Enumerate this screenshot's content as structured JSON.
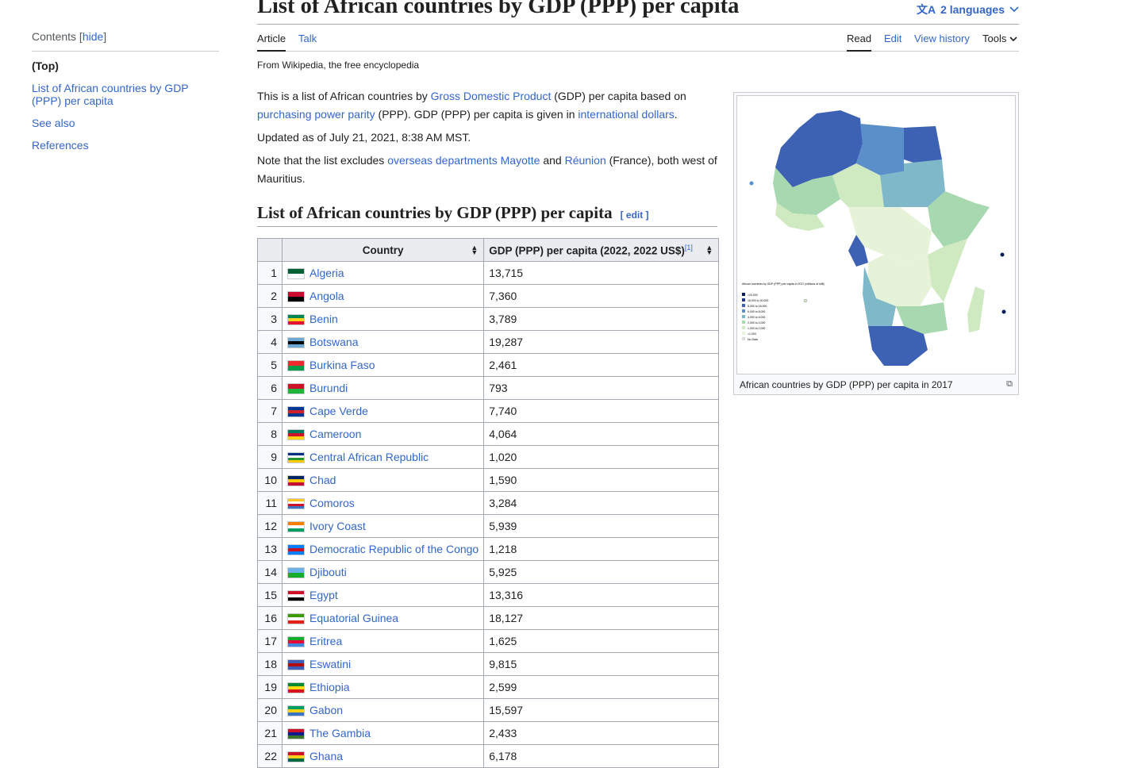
{
  "toc": {
    "heading": "Contents",
    "hide": "hide",
    "items": [
      "(Top)",
      "List of African countries by GDP (PPP) per capita",
      "See also",
      "References"
    ]
  },
  "page_title": "List of African countries by GDP (PPP) per capita",
  "languages": "2 languages",
  "tabs": {
    "article": "Article",
    "talk": "Talk",
    "read": "Read",
    "edit": "Edit",
    "history": "View history",
    "tools": "Tools"
  },
  "tagline": "From Wikipedia, the free encyclopedia",
  "intro": {
    "p1_a": "This is a list of African countries by ",
    "p1_link1": "Gross Domestic Product",
    "p1_b": " (GDP) per capita based on ",
    "p1_link2": "purchasing power parity",
    "p1_c": " (PPP). GDP (PPP) per capita is given in ",
    "p1_link3": "international dollars",
    "p1_d": ".",
    "p2": "Updated as of July 21, 2021, 8:38 AM MST.",
    "p3_a": "Note that the list excludes ",
    "p3_link1": "overseas departments",
    "p3_b": " ",
    "p3_link2": "Mayotte",
    "p3_c": " and ",
    "p3_link3": "Réunion",
    "p3_d": " (France), both west of Mauritius."
  },
  "section": {
    "heading": "List of African countries by GDP (PPP) per capita",
    "edit": "[ edit ]"
  },
  "table": {
    "col_country": "Country",
    "col_gdp": "GDP (PPP) per capita (2022, 2022 US$)",
    "col_gdp_ref": "[1]",
    "rows": [
      {
        "rank": "1",
        "country": "Algeria",
        "gdp": "13,715",
        "flag": [
          "#006233",
          "#ffffff"
        ]
      },
      {
        "rank": "2",
        "country": "Angola",
        "gdp": "7,360",
        "flag": [
          "#cc092f",
          "#000000"
        ]
      },
      {
        "rank": "3",
        "country": "Benin",
        "gdp": "3,789",
        "flag": [
          "#008751",
          "#fcd116",
          "#e8112d"
        ]
      },
      {
        "rank": "4",
        "country": "Botswana",
        "gdp": "19,287",
        "flag": [
          "#6da9d2",
          "#000000",
          "#6da9d2"
        ]
      },
      {
        "rank": "5",
        "country": "Burkina Faso",
        "gdp": "2,461",
        "flag": [
          "#ef2b2d",
          "#009e49"
        ]
      },
      {
        "rank": "6",
        "country": "Burundi",
        "gdp": "793",
        "flag": [
          "#ce1126",
          "#1eb53a"
        ]
      },
      {
        "rank": "7",
        "country": "Cape Verde",
        "gdp": "7,740",
        "flag": [
          "#003893",
          "#cf2027",
          "#003893"
        ]
      },
      {
        "rank": "8",
        "country": "Cameroon",
        "gdp": "4,064",
        "flag": [
          "#007a5e",
          "#ce1126",
          "#fcd116"
        ]
      },
      {
        "rank": "9",
        "country": "Central African Republic",
        "gdp": "1,020",
        "flag": [
          "#003082",
          "#ffffff",
          "#289728",
          "#ffce00"
        ]
      },
      {
        "rank": "10",
        "country": "Chad",
        "gdp": "1,590",
        "flag": [
          "#002664",
          "#fecb00",
          "#c60c30"
        ]
      },
      {
        "rank": "11",
        "country": "Comoros",
        "gdp": "3,284",
        "flag": [
          "#ffc61e",
          "#ffffff",
          "#ce1126",
          "#3a75c4"
        ]
      },
      {
        "rank": "12",
        "country": "Ivory Coast",
        "gdp": "5,939",
        "flag": [
          "#f77f00",
          "#ffffff",
          "#009e60"
        ]
      },
      {
        "rank": "13",
        "country": "Democratic Republic of the Congo",
        "gdp": "1,218",
        "flag": [
          "#007fff",
          "#ce1021",
          "#007fff"
        ]
      },
      {
        "rank": "14",
        "country": "Djibouti",
        "gdp": "5,925",
        "flag": [
          "#6ab2e7",
          "#12ad2b"
        ]
      },
      {
        "rank": "15",
        "country": "Egypt",
        "gdp": "13,316",
        "flag": [
          "#ce1126",
          "#ffffff",
          "#000000"
        ]
      },
      {
        "rank": "16",
        "country": "Equatorial Guinea",
        "gdp": "18,127",
        "flag": [
          "#3e9a00",
          "#ffffff",
          "#e32118"
        ]
      },
      {
        "rank": "17",
        "country": "Eritrea",
        "gdp": "1,625",
        "flag": [
          "#12ad2b",
          "#ea0437",
          "#4189dd"
        ]
      },
      {
        "rank": "18",
        "country": "Eswatini",
        "gdp": "9,815",
        "flag": [
          "#3e5eb9",
          "#b10c0c",
          "#3e5eb9"
        ]
      },
      {
        "rank": "19",
        "country": "Ethiopia",
        "gdp": "2,599",
        "flag": [
          "#078930",
          "#fcdd09",
          "#da121a"
        ]
      },
      {
        "rank": "20",
        "country": "Gabon",
        "gdp": "15,597",
        "flag": [
          "#009e60",
          "#fcd116",
          "#3a75c4"
        ]
      },
      {
        "rank": "21",
        "country": "The Gambia",
        "gdp": "2,433",
        "flag": [
          "#ce1126",
          "#0c1c8c",
          "#3a7728"
        ]
      },
      {
        "rank": "22",
        "country": "Ghana",
        "gdp": "6,178",
        "flag": [
          "#ce1126",
          "#fcd116",
          "#006b3f"
        ]
      }
    ]
  },
  "infobox": {
    "caption": "African countries by GDP (PPP) per capita in 2017",
    "legend_title": "African countries by GDP (PPP) per capita in 2017 (millions of int$)",
    "legend": [
      ">20,000",
      "16,000 to 20,000",
      "8,000 to 16,000",
      "6,000 to 8,000",
      "4,000 to 6,000",
      "2,000 to 4,000",
      "1,000 to 2,000",
      "<1,000",
      "No Data"
    ],
    "legend_colors": [
      "#081d58",
      "#253494",
      "#3d62b3",
      "#5b8fc9",
      "#7fb8c9",
      "#a8d8b0",
      "#cfe9c0",
      "#e6f3d8",
      "#dcdcdc"
    ]
  }
}
